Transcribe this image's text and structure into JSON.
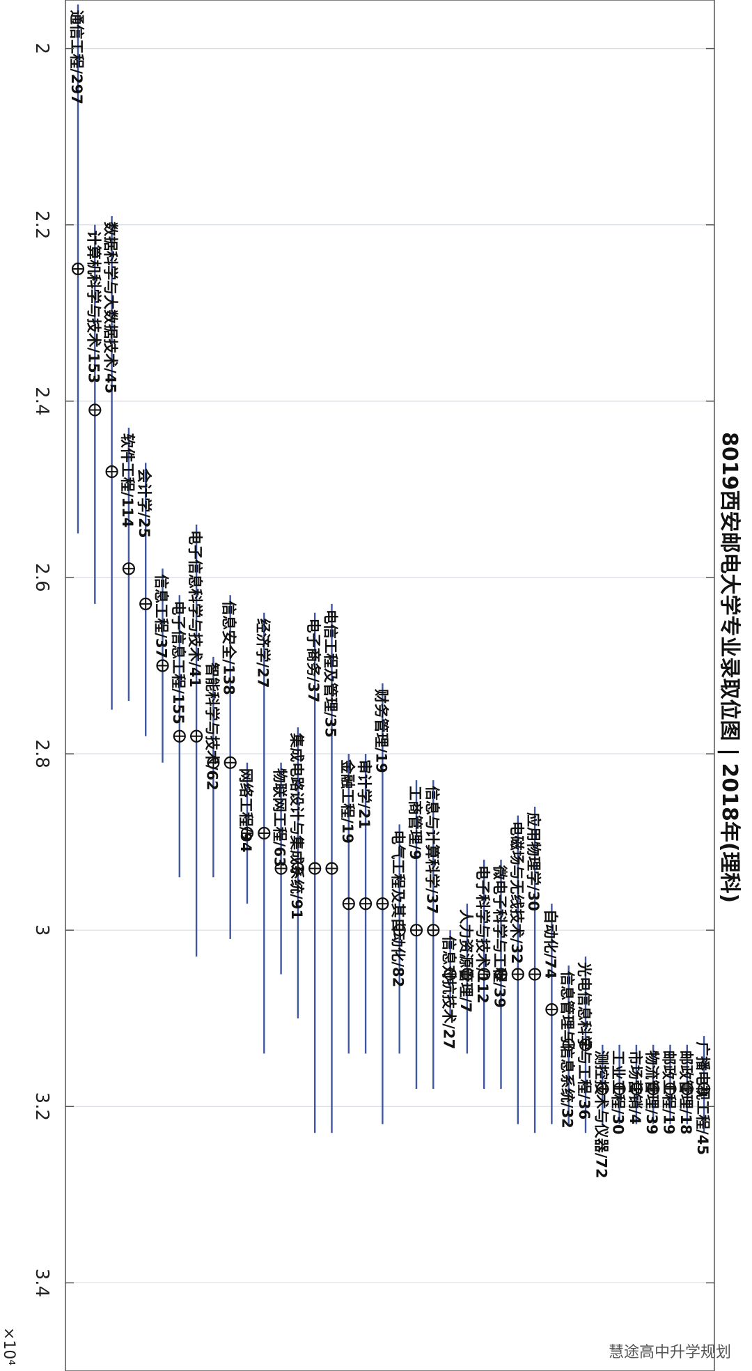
{
  "watermark": "慧途高中升学规划",
  "chart_data": {
    "type": "errorbar",
    "orientation": "rotated-90-cw",
    "title": "8019西安邮电大学专业录取位图 | 2018年(理科)",
    "xlabel": "",
    "ylabel": "",
    "exponent_label": "×10⁴",
    "y_ticks": [
      2,
      2.2,
      2.4,
      2.6,
      2.8,
      3,
      3.2,
      3.4
    ],
    "y_tick_labels": [
      "2",
      "2.2",
      "2.4",
      "2.6",
      "2.8",
      "3",
      "3.2",
      "3.4"
    ],
    "ylim": [
      1.945,
      3.5
    ],
    "grid": true,
    "series": [
      {
        "label": "通信工程/297",
        "center": 2.25,
        "low": 1.95,
        "high": 2.55
      },
      {
        "label": "计算机科学与技术/153",
        "center": 2.41,
        "low": 2.2,
        "high": 2.63
      },
      {
        "label": "数据科学与大数据技术/45",
        "center": 2.48,
        "low": 2.19,
        "high": 2.75
      },
      {
        "label": "软件工程/114",
        "center": 2.59,
        "low": 2.43,
        "high": 2.74
      },
      {
        "label": "会计学/25",
        "center": 2.63,
        "low": 2.47,
        "high": 2.78
      },
      {
        "label": "信息工程/37",
        "center": 2.7,
        "low": 2.59,
        "high": 2.81
      },
      {
        "label": "电子信息工程/155",
        "center": 2.78,
        "low": 2.62,
        "high": 2.94
      },
      {
        "label": "电子信息科学与技术/41",
        "center": 2.78,
        "low": 2.54,
        "high": 3.03
      },
      {
        "label": "智能科学与技术/62",
        "center": 2.81,
        "low": 2.69,
        "high": 2.94
      },
      {
        "label": "信息安全/138",
        "center": 2.81,
        "low": 2.62,
        "high": 3.01
      },
      {
        "label": "网络工程/94",
        "center": 2.89,
        "low": 2.81,
        "high": 2.97
      },
      {
        "label": "经济学/27",
        "center": 2.89,
        "low": 2.64,
        "high": 3.14
      },
      {
        "label": "物联网工程/63",
        "center": 2.93,
        "low": 2.81,
        "high": 3.05
      },
      {
        "label": "集成电路设计与集成系统/91",
        "center": 2.93,
        "low": 2.77,
        "high": 3.1
      },
      {
        "label": "电子商务/37",
        "center": 2.93,
        "low": 2.64,
        "high": 3.23
      },
      {
        "label": "电信工程及管理/35",
        "center": 2.93,
        "low": 2.63,
        "high": 3.23
      },
      {
        "label": "金融工程/19",
        "center": 2.97,
        "low": 2.8,
        "high": 3.14
      },
      {
        "label": "审计学/21",
        "center": 2.97,
        "low": 2.8,
        "high": 3.14
      },
      {
        "label": "财务管理/19",
        "center": 2.97,
        "low": 2.72,
        "high": 3.22
      },
      {
        "label": "电气工程及其自动化/82",
        "center": 3.0,
        "low": 2.88,
        "high": 3.14
      },
      {
        "label": "工商管理/9",
        "center": 3.0,
        "low": 2.83,
        "high": 3.18
      },
      {
        "label": "信息与计算科学/37",
        "center": 3.0,
        "low": 2.83,
        "high": 3.18
      },
      {
        "label": "信息对抗技术/27",
        "center": 3.05,
        "low": 3.0,
        "high": 3.1
      },
      {
        "label": "人力资源管理/7",
        "center": 3.05,
        "low": 2.97,
        "high": 3.14
      },
      {
        "label": "电子科学与技术/112",
        "center": 3.05,
        "low": 2.92,
        "high": 3.18
      },
      {
        "label": "微电子科学与工程/39",
        "center": 3.05,
        "low": 2.92,
        "high": 3.18
      },
      {
        "label": "电磁场与无线技术/32",
        "center": 3.05,
        "low": 2.87,
        "high": 3.22
      },
      {
        "label": "应用物理学/30",
        "center": 3.05,
        "low": 2.86,
        "high": 3.23
      },
      {
        "label": "自动化/74",
        "center": 3.09,
        "low": 2.97,
        "high": 3.22
      },
      {
        "label": "信息管理与信息系统/32",
        "center": 3.13,
        "low": 3.04,
        "high": 3.22
      },
      {
        "label": "光电信息科学与工程/36",
        "center": 3.13,
        "low": 3.03,
        "high": 3.23
      },
      {
        "label": "测控技术与仪器/72",
        "center": 3.18,
        "low": 3.13,
        "high": 3.22
      },
      {
        "label": "工业工程/30",
        "center": 3.18,
        "low": 3.13,
        "high": 3.22
      },
      {
        "label": "市场营销/4",
        "center": 3.18,
        "low": 3.13,
        "high": 3.22
      },
      {
        "label": "物流管理/39",
        "center": 3.18,
        "low": 3.13,
        "high": 3.22
      },
      {
        "label": "邮政工程/19",
        "center": 3.18,
        "low": 3.13,
        "high": 3.22
      },
      {
        "label": "邮政管理/18",
        "center": 3.18,
        "low": 3.13,
        "high": 3.22
      },
      {
        "label": "广播电视工程/45",
        "center": 3.18,
        "low": 3.12,
        "high": 3.23
      }
    ]
  }
}
